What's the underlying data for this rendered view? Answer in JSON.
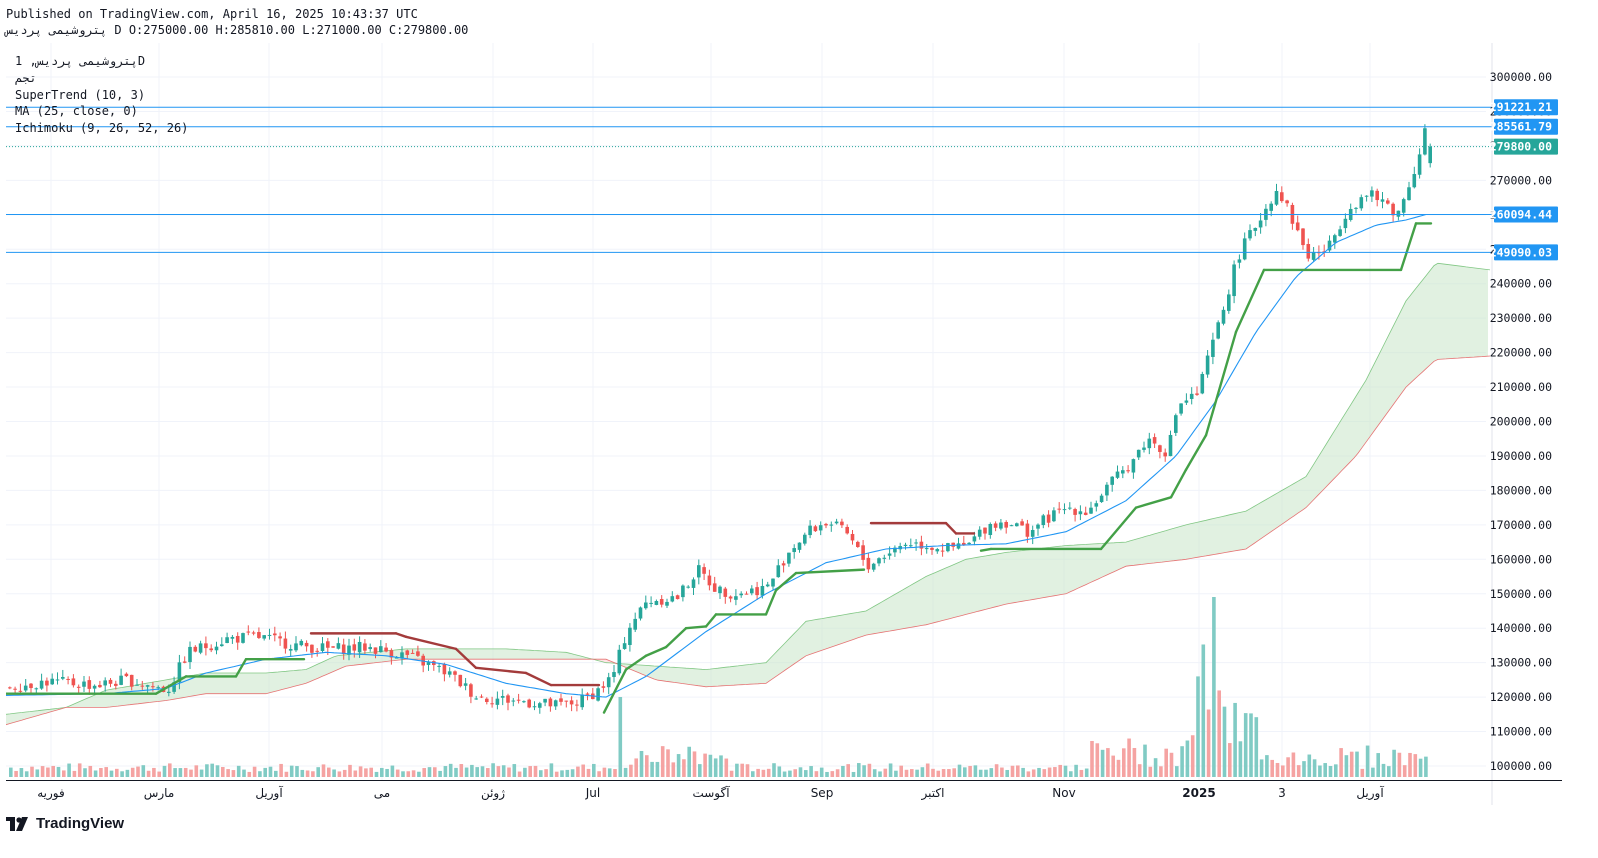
{
  "header": {
    "published": "Published on TradingView.com, April 16, 2025 10:43:37 UTC",
    "ohlc_line": "ﭘﺘﺮﻭﺷﯿﻤﯽ ﭘﺮﺩﯾﺲ D O:275000.00 H:285810.00 L:271000.00 C:279800.00"
  },
  "legend": {
    "symbol": "ﭘﺘﺮﻭﺷﯿﻤﯽ ﭘﺮﺩﯾﺲ, 1D",
    "sub": "ﺗﺠﻢ",
    "supertrend": "SuperTrend (10, 3)",
    "ma": "MA (25, close, 0)",
    "ichimoku": "Ichimoku (9, 26, 52, 26)"
  },
  "brand": {
    "name": "TradingView"
  },
  "colors": {
    "up": "#26a69a",
    "down": "#ef5350",
    "up_vol": "#80cbc4",
    "down_vol": "#f5a3a2",
    "supertrend_up": "#43a047",
    "supertrend_down": "#a33b3b",
    "ma": "#2196f3",
    "kumo_up": "#c8e6c9",
    "kumo_down": "#ffcdd2",
    "hline": "#2196f3",
    "grid": "#f0f3fa"
  },
  "chart_data": {
    "type": "candlestick",
    "symbol": "ﭘﺘﺮﻭﺷﯿﻤﯽ ﭘﺮﺩﯾﺲ",
    "interval": "1D",
    "last_bar": {
      "open": 275000.0,
      "high": 285810.0,
      "low": 271000.0,
      "close": 279800.0
    },
    "x_axis_labels": [
      "فوریه",
      "مارس",
      "آوریل",
      "می",
      "ژوئن",
      "Jul",
      "آگوست",
      "Sep",
      "اکتبر",
      "Nov",
      "2025",
      "3",
      "آوریل"
    ],
    "y_axis": {
      "range": [
        95000,
        316000
      ],
      "ticks": [
        300000,
        290000,
        280000,
        270000,
        260000,
        250000,
        240000,
        230000,
        220000,
        210000,
        200000,
        190000,
        180000,
        170000,
        160000,
        150000,
        140000,
        130000,
        120000,
        110000,
        100000
      ],
      "tick_labels": [
        "300000.00",
        "290000.00",
        "280000.00",
        "270000.00",
        "260000.00",
        "250000.00",
        "240000.00",
        "230000.00",
        "220000.00",
        "210000.00",
        "200000.00",
        "190000.00",
        "180000.00",
        "170000.00",
        "160000.00",
        "150000.00",
        "140000.00",
        "130000.00",
        "120000.00",
        "110000.00",
        "100000.00"
      ]
    },
    "horizontal_lines": [
      {
        "value": 291221.21,
        "label": "291221.21",
        "style": "solid"
      },
      {
        "value": 285561.79,
        "label": "285561.79",
        "style": "solid"
      },
      {
        "value": 260094.44,
        "label": "260094.44",
        "style": "solid"
      },
      {
        "value": 249090.03,
        "label": "249090.03",
        "style": "solid"
      },
      {
        "value": 279800.0,
        "label": "279800.00",
        "style": "dotted",
        "current_price": true
      }
    ],
    "price_path": [
      [
        0,
        123000
      ],
      [
        40,
        124500
      ],
      [
        90,
        123500
      ],
      [
        120,
        125000
      ],
      [
        160,
        122000
      ],
      [
        180,
        133000
      ],
      [
        220,
        137000
      ],
      [
        250,
        137500
      ],
      [
        290,
        135000
      ],
      [
        320,
        134000
      ],
      [
        360,
        134500
      ],
      [
        400,
        132000
      ],
      [
        440,
        127000
      ],
      [
        470,
        120000
      ],
      [
        510,
        119000
      ],
      [
        550,
        117500
      ],
      [
        570,
        118500
      ],
      [
        590,
        122000
      ],
      [
        605,
        126000
      ],
      [
        620,
        140000
      ],
      [
        640,
        148000
      ],
      [
        670,
        149000
      ],
      [
        690,
        157000
      ],
      [
        710,
        151000
      ],
      [
        730,
        150000
      ],
      [
        760,
        152000
      ],
      [
        780,
        162000
      ],
      [
        800,
        168000
      ],
      [
        820,
        171000
      ],
      [
        840,
        167000
      ],
      [
        860,
        158000
      ],
      [
        880,
        162000
      ],
      [
        900,
        165000
      ],
      [
        920,
        164000
      ],
      [
        940,
        163000
      ],
      [
        960,
        164000
      ],
      [
        980,
        170000
      ],
      [
        1000,
        171000
      ],
      [
        1020,
        168000
      ],
      [
        1040,
        172000
      ],
      [
        1060,
        175000
      ],
      [
        1080,
        174000
      ],
      [
        1100,
        181000
      ],
      [
        1120,
        187000
      ],
      [
        1140,
        195000
      ],
      [
        1160,
        191000
      ],
      [
        1170,
        205000
      ],
      [
        1190,
        208000
      ],
      [
        1200,
        218000
      ],
      [
        1215,
        232000
      ],
      [
        1230,
        248000
      ],
      [
        1250,
        258000
      ],
      [
        1270,
        268000
      ],
      [
        1290,
        255000
      ],
      [
        1300,
        248000
      ],
      [
        1320,
        250000
      ],
      [
        1340,
        262000
      ],
      [
        1360,
        266000
      ],
      [
        1380,
        263000
      ],
      [
        1390,
        260000
      ],
      [
        1400,
        268000
      ],
      [
        1410,
        276000
      ],
      [
        1418,
        286000
      ],
      [
        1425,
        279800
      ]
    ],
    "ma_25_path": [
      [
        0,
        120500
      ],
      [
        100,
        121000
      ],
      [
        160,
        122500
      ],
      [
        200,
        127000
      ],
      [
        260,
        131000
      ],
      [
        320,
        133000
      ],
      [
        380,
        132000
      ],
      [
        440,
        129500
      ],
      [
        500,
        124000
      ],
      [
        560,
        121000
      ],
      [
        600,
        120000
      ],
      [
        640,
        126000
      ],
      [
        700,
        139000
      ],
      [
        760,
        150000
      ],
      [
        820,
        159000
      ],
      [
        880,
        163000
      ],
      [
        940,
        164000
      ],
      [
        1000,
        164500
      ],
      [
        1060,
        168000
      ],
      [
        1120,
        177000
      ],
      [
        1170,
        190000
      ],
      [
        1210,
        206000
      ],
      [
        1250,
        226000
      ],
      [
        1290,
        242000
      ],
      [
        1330,
        252000
      ],
      [
        1370,
        257000
      ],
      [
        1400,
        258500
      ],
      [
        1420,
        260094
      ]
    ],
    "supertrend_path": [
      [
        0,
        121000,
        "up"
      ],
      [
        150,
        121000,
        "up"
      ],
      [
        180,
        126000,
        "up"
      ],
      [
        230,
        126000,
        "up"
      ],
      [
        240,
        131000,
        "up"
      ],
      [
        298,
        131000,
        "up"
      ],
      [
        305,
        138500,
        "down"
      ],
      [
        390,
        138500,
        "down"
      ],
      [
        400,
        137500,
        "down"
      ],
      [
        450,
        134000,
        "down"
      ],
      [
        470,
        128500,
        "down"
      ],
      [
        520,
        127000,
        "down"
      ],
      [
        545,
        123500,
        "down"
      ],
      [
        593,
        123500,
        "down"
      ],
      [
        598,
        115500,
        "up"
      ],
      [
        620,
        128000,
        "up"
      ],
      [
        640,
        132000,
        "up"
      ],
      [
        660,
        134500,
        "up"
      ],
      [
        680,
        140000,
        "up"
      ],
      [
        700,
        140500,
        "up"
      ],
      [
        710,
        144000,
        "up"
      ],
      [
        760,
        144000,
        "up"
      ],
      [
        770,
        151000,
        "up"
      ],
      [
        790,
        156000,
        "up"
      ],
      [
        858,
        157000,
        "up"
      ],
      [
        865,
        170500,
        "down"
      ],
      [
        940,
        170500,
        "down"
      ],
      [
        950,
        167500,
        "down"
      ],
      [
        968,
        167500,
        "down"
      ],
      [
        975,
        162500,
        "up"
      ],
      [
        985,
        163000,
        "up"
      ],
      [
        1095,
        163000,
        "up"
      ],
      [
        1130,
        175000,
        "up"
      ],
      [
        1165,
        178000,
        "up"
      ],
      [
        1180,
        186000,
        "up"
      ],
      [
        1200,
        196000,
        "up"
      ],
      [
        1230,
        226000,
        "up"
      ],
      [
        1258,
        244000,
        "up"
      ],
      [
        1395,
        244000,
        "up"
      ],
      [
        1410,
        257500,
        "up"
      ],
      [
        1425,
        257500,
        "up"
      ]
    ],
    "ichimoku_span_a": [
      [
        0,
        115000
      ],
      [
        60,
        117000
      ],
      [
        100,
        122000
      ],
      [
        140,
        124000
      ],
      [
        200,
        127000
      ],
      [
        260,
        127000
      ],
      [
        300,
        128000
      ],
      [
        330,
        132000
      ],
      [
        400,
        134000
      ],
      [
        460,
        134000
      ],
      [
        500,
        134000
      ],
      [
        560,
        133000
      ],
      [
        600,
        130000
      ],
      [
        650,
        129000
      ],
      [
        700,
        128000
      ],
      [
        760,
        130000
      ],
      [
        800,
        142000
      ],
      [
        860,
        145000
      ],
      [
        920,
        155000
      ],
      [
        960,
        160000
      ],
      [
        1000,
        162000
      ],
      [
        1060,
        164000
      ],
      [
        1120,
        165000
      ],
      [
        1180,
        170000
      ],
      [
        1240,
        174000
      ],
      [
        1300,
        184000
      ],
      [
        1330,
        198000
      ],
      [
        1360,
        212000
      ],
      [
        1400,
        235000
      ],
      [
        1430,
        246000
      ],
      [
        1484,
        244000
      ]
    ],
    "ichimoku_span_b": [
      [
        0,
        112000
      ],
      [
        60,
        117000
      ],
      [
        100,
        117000
      ],
      [
        160,
        119000
      ],
      [
        200,
        121000
      ],
      [
        260,
        121000
      ],
      [
        300,
        124000
      ],
      [
        340,
        129000
      ],
      [
        400,
        131000
      ],
      [
        500,
        131000
      ],
      [
        560,
        131000
      ],
      [
        600,
        131000
      ],
      [
        650,
        125000
      ],
      [
        700,
        123000
      ],
      [
        760,
        124000
      ],
      [
        800,
        132000
      ],
      [
        860,
        138000
      ],
      [
        920,
        141000
      ],
      [
        960,
        144000
      ],
      [
        1000,
        147000
      ],
      [
        1060,
        150000
      ],
      [
        1120,
        158000
      ],
      [
        1180,
        160000
      ],
      [
        1240,
        163000
      ],
      [
        1300,
        175000
      ],
      [
        1350,
        190000
      ],
      [
        1400,
        210000
      ],
      [
        1430,
        218000
      ],
      [
        1484,
        219000
      ]
    ],
    "volume_bars": "relative volume bars along the bottom, with a large spike in January 2025 (~149000 level of the pane)"
  }
}
